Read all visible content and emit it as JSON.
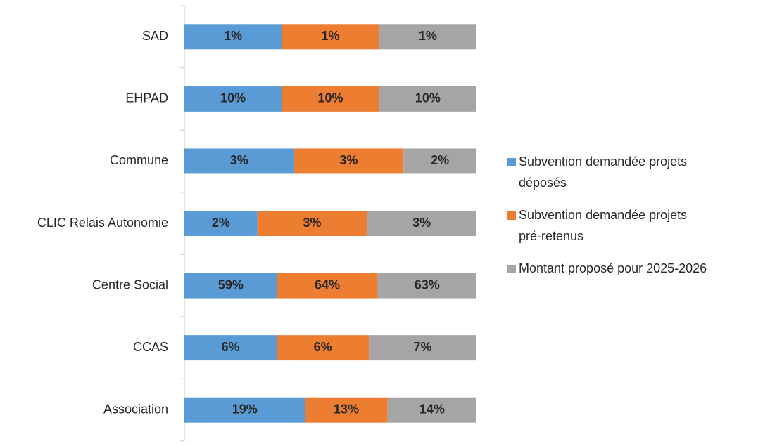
{
  "chart_data": {
    "type": "bar",
    "orientation": "horizontal",
    "stacked": "percent",
    "title": "",
    "xlabel": "",
    "ylabel": "",
    "categories": [
      "SAD",
      "EHPAD",
      "Commune",
      "CLIC Relais Autonomie",
      "Centre Social",
      "CCAS",
      "Association"
    ],
    "series": [
      {
        "name": "Subvention demandée projets déposés",
        "legend_lines": [
          "Subvention demandée projets",
          "déposés"
        ],
        "color": "#5b9bd5",
        "values": [
          1,
          10,
          3,
          2,
          59,
          6,
          19
        ],
        "labels": [
          "1%",
          "10%",
          "3%",
          "2%",
          "59%",
          "6%",
          "19%"
        ]
      },
      {
        "name": "Subvention demandée projets pré-retenus",
        "legend_lines": [
          "Subvention demandée projets",
          "pré-retenus"
        ],
        "color": "#ed7d31",
        "values": [
          1,
          10,
          3,
          3,
          64,
          6,
          13
        ],
        "labels": [
          "1%",
          "10%",
          "3%",
          "3%",
          "64%",
          "6%",
          "13%"
        ]
      },
      {
        "name": "Montant proposé pour 2025-2026",
        "legend_lines": [
          "Montant proposé pour 2025-2026"
        ],
        "color": "#a5a5a5",
        "values": [
          1,
          10,
          2,
          3,
          63,
          7,
          14
        ],
        "labels": [
          "1%",
          "10%",
          "2%",
          "3%",
          "63%",
          "7%",
          "14%"
        ]
      }
    ],
    "legend_position": "right",
    "grid": false
  }
}
